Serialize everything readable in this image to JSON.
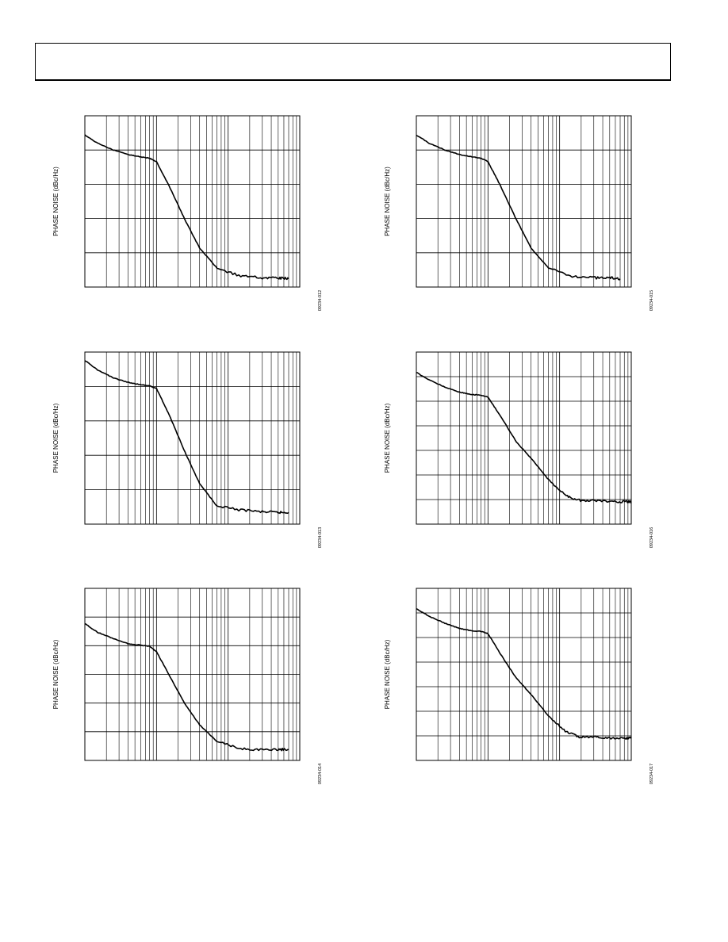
{
  "page": {
    "header": ""
  },
  "figures": [
    {
      "ylabel": "PHASE NOISE (dBc/Hz)",
      "fig_id": "09234-012"
    },
    {
      "ylabel": "PHASE NOISE (dBc/Hz)",
      "fig_id": "09234-015"
    },
    {
      "ylabel": "PHASE NOISE (dBc/Hz)",
      "fig_id": "09234-013"
    },
    {
      "ylabel": "PHASE NOISE (dBc/Hz)",
      "fig_id": "09234-016"
    },
    {
      "ylabel": "PHASE NOISE (dBc/Hz)",
      "fig_id": "09234-014"
    },
    {
      "ylabel": "PHASE NOISE (dBc/Hz)",
      "fig_id": "09234-017"
    }
  ],
  "chart_data": [
    {
      "type": "line",
      "xscale": "log",
      "xlim": [
        1,
        1000
      ],
      "ylim": [
        0,
        5
      ],
      "grid": true,
      "xlabel": "",
      "ylabel": "PHASE NOISE (dBc/Hz)",
      "series": [
        {
          "x": [
            1,
            1.5,
            2.5,
            4,
            6,
            8,
            10,
            15,
            25,
            40,
            70,
            150,
            300,
            500,
            700
          ],
          "y": [
            4.44,
            4.2,
            4.0,
            3.87,
            3.8,
            3.76,
            3.66,
            2.95,
            1.96,
            1.14,
            0.55,
            0.32,
            0.27,
            0.27,
            0.24
          ]
        }
      ]
    },
    {
      "type": "line",
      "xscale": "log",
      "xlim": [
        1,
        1000
      ],
      "ylim": [
        0,
        5
      ],
      "grid": true,
      "xlabel": "",
      "ylabel": "PHASE NOISE (dBc/Hz)",
      "series": [
        {
          "x": [
            1,
            1.5,
            2.5,
            4,
            6,
            8,
            10,
            15,
            25,
            40,
            70,
            150,
            300,
            500,
            700
          ],
          "y": [
            4.44,
            4.2,
            4.0,
            3.87,
            3.8,
            3.76,
            3.66,
            2.95,
            1.96,
            1.14,
            0.55,
            0.32,
            0.27,
            0.27,
            0.24
          ]
        }
      ]
    },
    {
      "type": "line",
      "xscale": "log",
      "xlim": [
        1,
        1000
      ],
      "ylim": [
        0,
        5
      ],
      "grid": true,
      "xlabel": "",
      "ylabel": "PHASE NOISE (dBc/Hz)",
      "series": [
        {
          "x": [
            1,
            1.5,
            2.5,
            4,
            6,
            8,
            10,
            15,
            25,
            40,
            70,
            150,
            300,
            500,
            700
          ],
          "y": [
            4.76,
            4.48,
            4.25,
            4.12,
            4.05,
            4.02,
            3.94,
            3.18,
            2.09,
            1.18,
            0.52,
            0.41,
            0.36,
            0.34,
            0.34
          ]
        }
      ]
    },
    {
      "type": "line",
      "xscale": "log",
      "xlim": [
        1,
        1000
      ],
      "ylim": [
        0,
        7
      ],
      "grid": true,
      "xlabel": "",
      "ylabel": "PHASE NOISE (dBc/Hz)",
      "series": [
        {
          "x": [
            1,
            1.5,
            2.5,
            4,
            6,
            8,
            10,
            15,
            25,
            40,
            70,
            120,
            180,
            300,
            500,
            800,
            1000
          ],
          "y": [
            6.17,
            5.87,
            5.58,
            5.37,
            5.27,
            5.25,
            5.16,
            4.39,
            3.34,
            2.68,
            1.81,
            1.17,
            0.97,
            0.95,
            0.92,
            0.91,
            0.9
          ]
        }
      ]
    },
    {
      "type": "line",
      "xscale": "log",
      "xlim": [
        1,
        1000
      ],
      "ylim": [
        0,
        6
      ],
      "grid": true,
      "xlabel": "",
      "ylabel": "PHASE NOISE (dBc/Hz)",
      "series": [
        {
          "x": [
            1,
            1.5,
            2.5,
            4,
            6,
            8,
            10,
            15,
            25,
            40,
            70,
            150,
            300,
            500,
            700
          ],
          "y": [
            4.77,
            4.47,
            4.25,
            4.07,
            4.02,
            3.98,
            3.79,
            2.98,
            1.97,
            1.24,
            0.66,
            0.41,
            0.37,
            0.38,
            0.38
          ]
        }
      ]
    },
    {
      "type": "line",
      "xscale": "log",
      "xlim": [
        1,
        1000
      ],
      "ylim": [
        0,
        7
      ],
      "grid": true,
      "xlabel": "",
      "ylabel": "PHASE NOISE (dBc/Hz)",
      "series": [
        {
          "x": [
            1,
            1.5,
            2.5,
            4,
            6,
            8,
            10,
            15,
            25,
            40,
            70,
            120,
            180,
            300,
            500,
            800,
            1000
          ],
          "y": [
            6.17,
            5.87,
            5.58,
            5.37,
            5.27,
            5.25,
            5.16,
            4.32,
            3.34,
            2.68,
            1.81,
            1.17,
            0.97,
            0.95,
            0.92,
            0.91,
            0.9
          ]
        }
      ]
    }
  ]
}
